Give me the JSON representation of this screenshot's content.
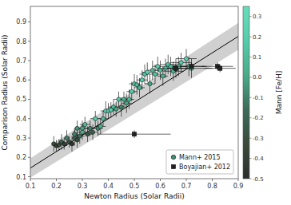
{
  "chart_data": {
    "type": "scatter",
    "xlabel": "Newton Radius (Solar Radii)",
    "ylabel": "Comparison Radius (Solar Radii)",
    "xlim": [
      0.1,
      0.9
    ],
    "ylim": [
      0.09,
      0.98
    ],
    "xticks": [
      0.1,
      0.2,
      0.3,
      0.4,
      0.5,
      0.6,
      0.7,
      0.8,
      0.9
    ],
    "yticks": [
      0.1,
      0.2,
      0.3,
      0.4,
      0.5,
      0.6,
      0.7,
      0.8,
      0.9
    ],
    "legend": "lower right",
    "series": [
      {
        "name": "Mann+ 2015",
        "marker": "circle",
        "x": [
          0.19,
          0.2,
          0.21,
          0.22,
          0.23,
          0.24,
          0.25,
          0.26,
          0.27,
          0.27,
          0.28,
          0.28,
          0.29,
          0.3,
          0.3,
          0.31,
          0.32,
          0.33,
          0.34,
          0.35,
          0.36,
          0.37,
          0.38,
          0.39,
          0.4,
          0.41,
          0.42,
          0.43,
          0.44,
          0.45,
          0.46,
          0.47,
          0.48,
          0.49,
          0.5,
          0.51,
          0.52,
          0.53,
          0.54,
          0.55,
          0.56,
          0.57,
          0.58,
          0.59,
          0.6,
          0.61,
          0.62,
          0.63,
          0.64,
          0.65,
          0.66,
          0.67,
          0.68,
          0.7,
          0.71,
          0.72
        ],
        "values": [
          0.27,
          0.26,
          0.265,
          0.28,
          0.27,
          0.3,
          0.28,
          0.27,
          0.3,
          0.32,
          0.35,
          0.29,
          0.31,
          0.33,
          0.35,
          0.37,
          0.32,
          0.35,
          0.33,
          0.4,
          0.35,
          0.36,
          0.4,
          0.44,
          0.44,
          0.445,
          0.46,
          0.45,
          0.5,
          0.46,
          0.5,
          0.48,
          0.5,
          0.54,
          0.58,
          0.575,
          0.56,
          0.6,
          0.63,
          0.64,
          0.58,
          0.65,
          0.63,
          0.67,
          0.65,
          0.62,
          0.66,
          0.68,
          0.67,
          0.645,
          0.66,
          0.67,
          0.69,
          0.71,
          0.67,
          0.66
        ],
        "feh": [
          -0.3,
          -0.4,
          -0.35,
          -0.2,
          -0.4,
          -0.1,
          -0.3,
          -0.45,
          -0.2,
          -0.1,
          -0.05,
          -0.3,
          -0.15,
          0.05,
          0.0,
          0.1,
          -0.25,
          -0.1,
          -0.2,
          0.2,
          -0.1,
          0.05,
          0.1,
          0.25,
          0.15,
          0.2,
          0.1,
          0.0,
          0.15,
          -0.1,
          0.05,
          0.0,
          0.1,
          0.2,
          0.15,
          0.1,
          0.05,
          0.2,
          0.15,
          0.25,
          0.0,
          0.1,
          0.15,
          0.2,
          0.1,
          0.05,
          0.2,
          0.15,
          0.1,
          0.05,
          0.1,
          0.15,
          0.2,
          0.25,
          0.1,
          0.05
        ],
        "x_error": [
          0.01,
          0.01,
          0.01,
          0.01,
          0.01,
          0.01,
          0.01,
          0.01,
          0.01,
          0.01,
          0.01,
          0.01,
          0.02,
          0.02,
          0.02,
          0.02,
          0.02,
          0.02,
          0.02,
          0.02,
          0.02,
          0.02,
          0.02,
          0.02,
          0.02,
          0.02,
          0.02,
          0.02,
          0.02,
          0.02,
          0.02,
          0.02,
          0.02,
          0.02,
          0.02,
          0.02,
          0.02,
          0.02,
          0.02,
          0.02,
          0.02,
          0.02,
          0.02,
          0.02,
          0.02,
          0.02,
          0.03,
          0.03,
          0.03,
          0.04,
          0.04,
          0.04,
          0.04,
          0.04,
          0.06,
          0.08
        ],
        "y_error": [
          0.04,
          0.03,
          0.03,
          0.04,
          0.03,
          0.04,
          0.03,
          0.04,
          0.04,
          0.03,
          0.04,
          0.04,
          0.04,
          0.04,
          0.04,
          0.04,
          0.04,
          0.04,
          0.04,
          0.04,
          0.04,
          0.04,
          0.04,
          0.05,
          0.04,
          0.04,
          0.04,
          0.04,
          0.04,
          0.05,
          0.04,
          0.05,
          0.05,
          0.05,
          0.05,
          0.05,
          0.05,
          0.05,
          0.05,
          0.05,
          0.05,
          0.05,
          0.05,
          0.05,
          0.05,
          0.05,
          0.05,
          0.05,
          0.05,
          0.05,
          0.05,
          0.05,
          0.05,
          0.05,
          0.05,
          0.05
        ]
      },
      {
        "name": "Boyajian+ 2012",
        "marker": "square",
        "color": "#222222",
        "x": [
          0.5,
          0.66,
          0.72,
          0.82,
          0.83
        ],
        "values": [
          0.32,
          0.66,
          0.67,
          0.67,
          0.66
        ],
        "x_error": [
          0.14,
          0.05,
          0.06,
          0.06,
          0.06
        ],
        "y_error": [
          0.02,
          0.02,
          0.02,
          0.02,
          0.02
        ]
      }
    ],
    "fit_line": {
      "type": "line",
      "color": "#000000",
      "x": [
        0.1,
        0.9
      ],
      "values": [
        0.145,
        0.825
      ]
    },
    "band": {
      "type": "area",
      "color": "#b0b0b0",
      "x": [
        0.1,
        0.9
      ],
      "lower": [
        0.095,
        0.755
      ],
      "upper": [
        0.195,
        0.895
      ]
    },
    "colorbar": {
      "label": "Mann [Fe/H]",
      "vmin": -0.5,
      "vmax": 0.35,
      "colors": [
        "#2d2d2d",
        "#3a4a3a",
        "#3d6b5a",
        "#4aaa88",
        "#55ccaa",
        "#66ddbb"
      ],
      "ticks": [
        0.3,
        0.2,
        0.1,
        {
          "value": 0.0,
          "label": "0.0"
        },
        -0.1,
        -0.2,
        -0.3,
        -0.4,
        -0.5
      ]
    }
  }
}
